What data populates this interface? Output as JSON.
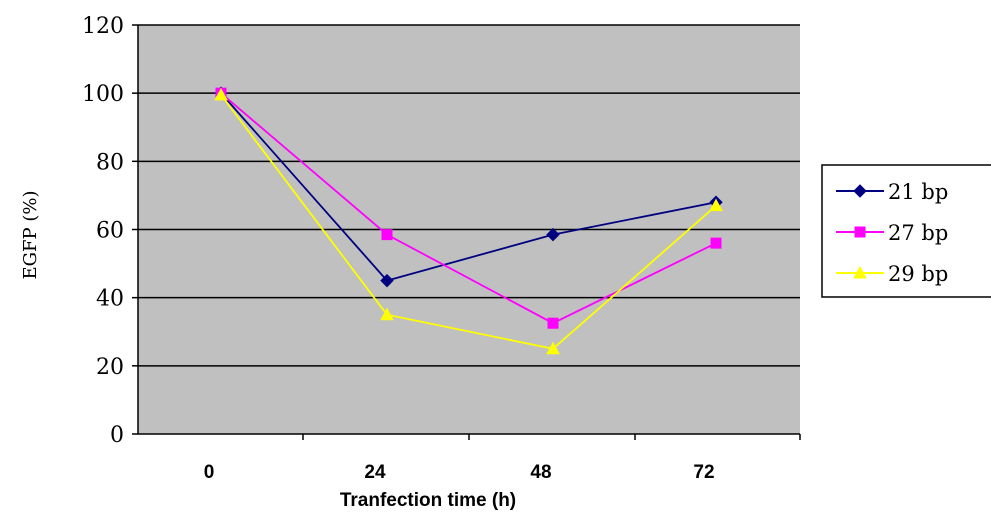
{
  "chart_data": {
    "type": "line",
    "categories": [
      "0",
      "24",
      "48",
      "72"
    ],
    "x": [
      0,
      24,
      48,
      72
    ],
    "xlabel": "Tranfection time (h)",
    "ylabel": "EGFP (%)",
    "ylim": [
      0,
      120
    ],
    "yticks": [
      "0",
      "20",
      "40",
      "60",
      "80",
      "100",
      "120"
    ],
    "grid": "horizontal",
    "legend_position": "right",
    "plot_background": "#c0c0c0",
    "series": [
      {
        "name": "21 bp",
        "color": "#000080",
        "marker": "diamond",
        "values": [
          100,
          45,
          58.5,
          68
        ]
      },
      {
        "name": "27 bp",
        "color": "#ff00ff",
        "marker": "square",
        "values": [
          100,
          58.5,
          32.5,
          56
        ]
      },
      {
        "name": "29 bp",
        "color": "#ffff00",
        "marker": "triangle",
        "values": [
          99.5,
          35,
          25,
          67
        ]
      }
    ]
  }
}
